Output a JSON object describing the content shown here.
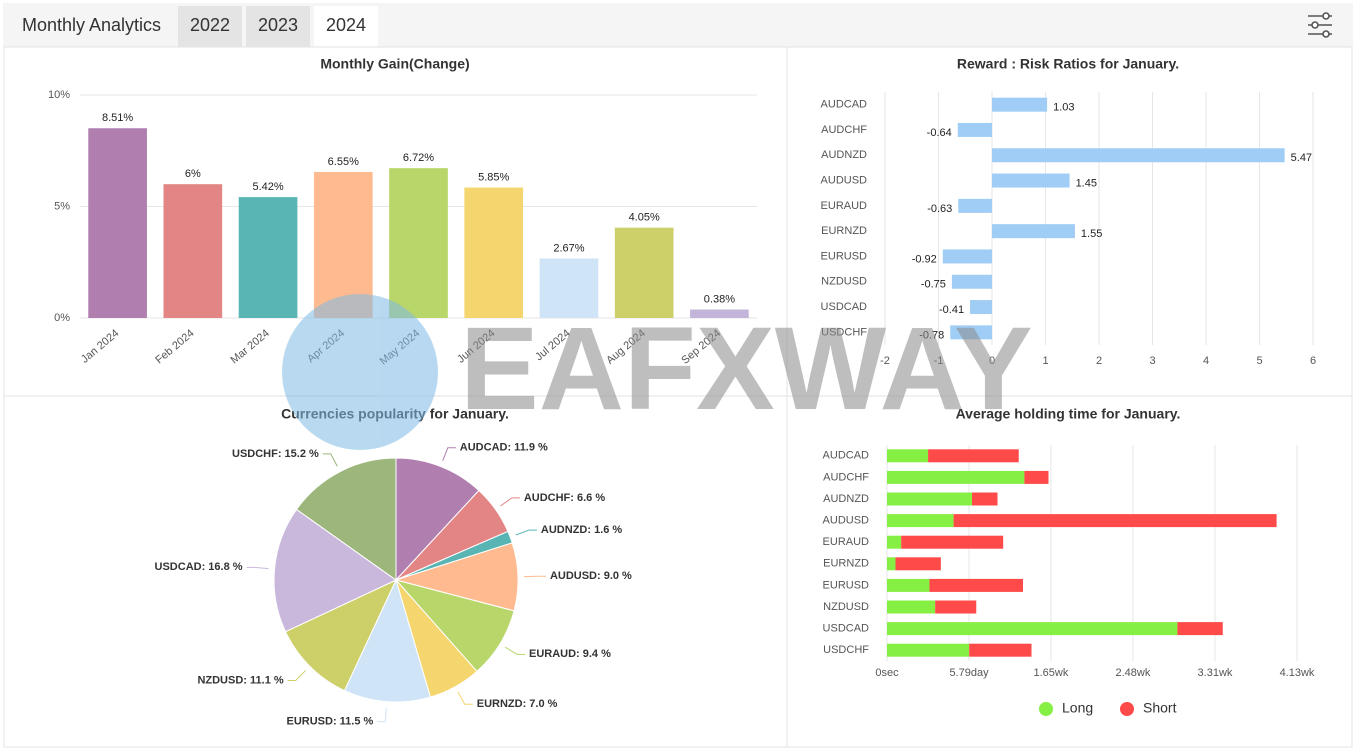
{
  "header": {
    "title": "Monthly Analytics",
    "tabs": [
      "2022",
      "2023",
      "2024"
    ],
    "active_tab": "2024"
  },
  "watermark": "EAFXWAY",
  "chart_data": [
    {
      "type": "bar",
      "title": "Monthly Gain(Change)",
      "categories": [
        "Jan 2024",
        "Feb 2024",
        "Mar 2024",
        "Apr 2024",
        "May 2024",
        "Jun 2024",
        "Jul 2024",
        "Aug 2024",
        "Sep 2024"
      ],
      "values": [
        8.51,
        6,
        5.42,
        6.55,
        6.72,
        5.85,
        2.67,
        4.05,
        0.38
      ],
      "value_labels": [
        "8.51%",
        "6%",
        "5.42%",
        "6.55%",
        "6.72%",
        "5.85%",
        "2.67%",
        "4.05%",
        "0.38%"
      ],
      "colors": [
        "#b07fb0",
        "#e38585",
        "#58b5b3",
        "#ffbb8f",
        "#b8d66a",
        "#f5d56e",
        "#cfe4f7",
        "#cdcf69",
        "#c3b4da"
      ],
      "ylim": [
        0,
        10
      ],
      "yticks": [
        {
          "value": 0,
          "label": "0%"
        },
        {
          "value": 5,
          "label": "5%"
        },
        {
          "value": 10,
          "label": "10%"
        }
      ],
      "grid": true
    },
    {
      "type": "horizontal_bar",
      "title": "Reward : Risk Ratios for January.",
      "categories": [
        "AUDCAD",
        "AUDCHF",
        "AUDNZD",
        "AUDUSD",
        "EURAUD",
        "EURNZD",
        "EURUSD",
        "NZDUSD",
        "USDCAD",
        "USDCHF"
      ],
      "values": [
        1.03,
        -0.64,
        5.47,
        1.45,
        -0.63,
        1.55,
        -0.92,
        -0.75,
        -0.41,
        -0.78
      ],
      "color": "#9fcdf5",
      "xlim": [
        -2,
        6
      ],
      "xticks": [
        -2,
        -1,
        0,
        1,
        2,
        3,
        4,
        5,
        6
      ],
      "grid": true
    },
    {
      "type": "pie",
      "title": "Currencies popularity for January.",
      "labels": [
        "AUDCAD: 11.9 %",
        "AUDCHF: 6.6 %",
        "AUDNZD: 1.6 %",
        "AUDUSD: 9.0 %",
        "EURAUD: 9.4 %",
        "EURNZD: 7.0 %",
        "EURUSD: 11.5 %",
        "NZDUSD: 11.1 %",
        "USDCAD: 16.8 %",
        "USDCHF: 15.2 %"
      ],
      "values": [
        11.9,
        6.6,
        1.6,
        9.0,
        9.4,
        7.0,
        11.5,
        11.1,
        16.8,
        15.2
      ],
      "colors": [
        "#b07fb0",
        "#e38585",
        "#58b5b3",
        "#ffbb8f",
        "#b8d66a",
        "#f5d56e",
        "#cfe4f7",
        "#cdcf69",
        "#c9b8dc",
        "#9cb67c"
      ]
    },
    {
      "type": "stacked_horizontal_bar",
      "title": "Average holding time for January.",
      "categories": [
        "AUDCAD",
        "AUDCHF",
        "AUDNZD",
        "AUDUSD",
        "EURAUD",
        "EURNZD",
        "EURUSD",
        "NZDUSD",
        "USDCAD",
        "USDCHF"
      ],
      "series": [
        {
          "name": "Long",
          "color": "#86ef44",
          "values": [
            2.9,
            9.7,
            6.0,
            4.7,
            1.0,
            0.6,
            3.0,
            3.4,
            20.5,
            5.8
          ]
        },
        {
          "name": "Short",
          "color": "#ff4a4a",
          "values": [
            6.4,
            1.7,
            1.8,
            22.8,
            7.2,
            3.2,
            6.6,
            2.9,
            3.2,
            4.4
          ]
        }
      ],
      "xlim": [
        0,
        28.94
      ],
      "xticks": [
        {
          "value": 0,
          "label": "0sec"
        },
        {
          "value": 5.79,
          "label": "5.79day"
        },
        {
          "value": 11.57,
          "label": "1.65wk"
        },
        {
          "value": 17.36,
          "label": "2.48wk"
        },
        {
          "value": 23.15,
          "label": "3.31wk"
        },
        {
          "value": 28.94,
          "label": "4.13wk"
        }
      ],
      "grid": true,
      "legend": "bottom"
    }
  ]
}
